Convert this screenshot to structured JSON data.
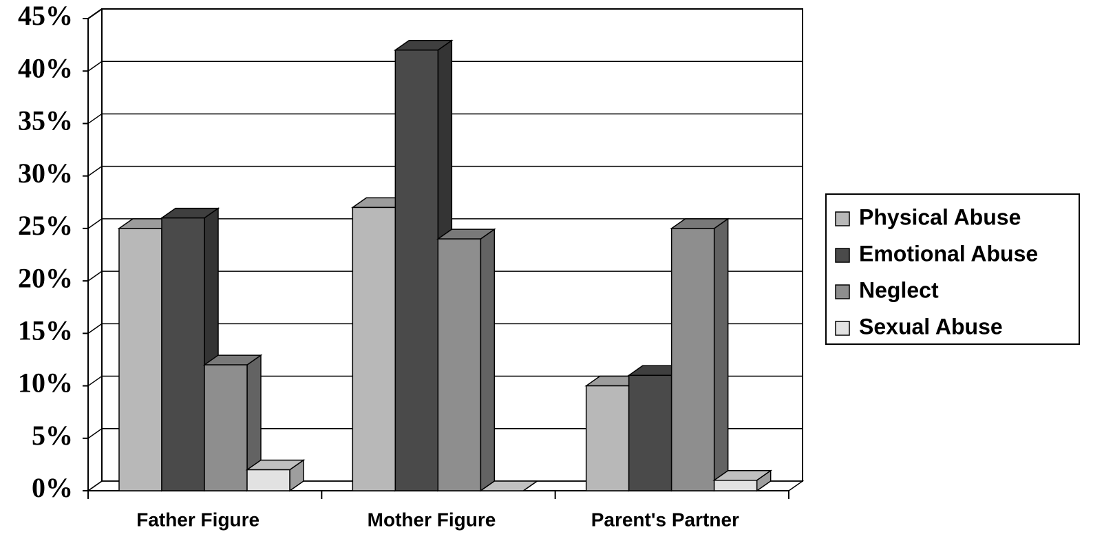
{
  "chart_data": {
    "type": "bar3d",
    "categories": [
      "Father Figure",
      "Mother Figure",
      "Parent's Partner"
    ],
    "series": [
      {
        "name": "Physical Abuse",
        "color": "#b8b8b8",
        "values": [
          25,
          27,
          10
        ]
      },
      {
        "name": "Emotional Abuse",
        "color": "#4a4a4a",
        "values": [
          26,
          42,
          11
        ]
      },
      {
        "name": "Neglect",
        "color": "#8e8e8e",
        "values": [
          12,
          24,
          25
        ]
      },
      {
        "name": "Sexual Abuse",
        "color": "#e2e2e2",
        "values": [
          2,
          0,
          1
        ]
      }
    ],
    "ylim": [
      0,
      45
    ],
    "yticks": [
      {
        "value": 0,
        "label": "0%"
      },
      {
        "value": 5,
        "label": "5%"
      },
      {
        "value": 10,
        "label": "10%"
      },
      {
        "value": 15,
        "label": "15%"
      },
      {
        "value": 20,
        "label": "20%"
      },
      {
        "value": 25,
        "label": "25%"
      },
      {
        "value": 30,
        "label": "30%"
      },
      {
        "value": 35,
        "label": "35%"
      },
      {
        "value": 40,
        "label": "40%"
      },
      {
        "value": 45,
        "label": "45%"
      }
    ],
    "grid": true,
    "legend": "right"
  }
}
